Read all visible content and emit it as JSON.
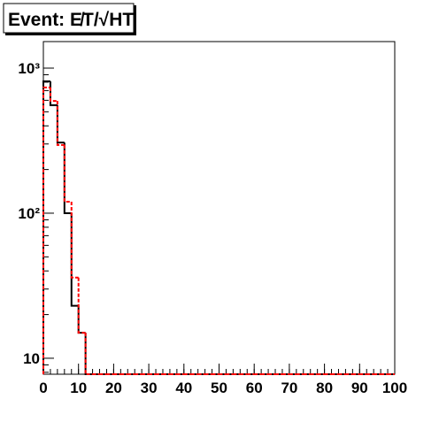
{
  "chart_data": {
    "type": "histogram",
    "title": "Event: E̸T/√HT",
    "bins": [
      0,
      2,
      4,
      6,
      8,
      10,
      12,
      14,
      16,
      18,
      20,
      22,
      24,
      26,
      28,
      30,
      32,
      34,
      36,
      38,
      40,
      42,
      44,
      46,
      48,
      50,
      52,
      54,
      56,
      58,
      60,
      62,
      64,
      66,
      68,
      70,
      72,
      74,
      76,
      78,
      80,
      82,
      84,
      86,
      88,
      90,
      92,
      94,
      96,
      98,
      100
    ],
    "series": [
      {
        "color": "#000000",
        "dash": false,
        "values": [
          811,
          555,
          307,
          100,
          23,
          15,
          0,
          0,
          0,
          0,
          0,
          0,
          0,
          0,
          0,
          0,
          0,
          0,
          0,
          0,
          0,
          0,
          0,
          0,
          0,
          0,
          0,
          0,
          0,
          0,
          0,
          0,
          0,
          0,
          0,
          0,
          0,
          0,
          0,
          0,
          0,
          0,
          0,
          0,
          0,
          0,
          0,
          0,
          0,
          0
        ]
      },
      {
        "color": "#ff0000",
        "dash": true,
        "values": [
          735,
          594,
          295,
          120,
          36,
          15,
          0,
          0,
          0,
          0,
          0,
          0,
          0,
          0,
          0,
          0,
          0,
          0,
          0,
          0,
          0,
          0,
          0,
          0,
          0,
          0,
          0,
          0,
          0,
          0,
          0,
          0,
          0,
          0,
          0,
          0,
          0,
          0,
          0,
          0,
          0,
          0,
          0,
          0,
          0,
          0,
          0,
          0,
          0,
          0
        ]
      }
    ],
    "xlim": [
      0,
      100
    ],
    "xticks": [
      0,
      10,
      20,
      30,
      40,
      50,
      60,
      70,
      80,
      90,
      100
    ],
    "ylim": [
      7.76,
      1524
    ],
    "log_y": true,
    "yticks": [
      10,
      {
        "value": 100,
        "label": "10²"
      },
      {
        "value": 1000,
        "label": "10³"
      }
    ],
    "yminorticks": [
      8,
      9,
      20,
      30,
      40,
      50,
      60,
      70,
      80,
      90,
      200,
      300,
      400,
      500,
      600,
      700,
      800,
      900
    ]
  }
}
